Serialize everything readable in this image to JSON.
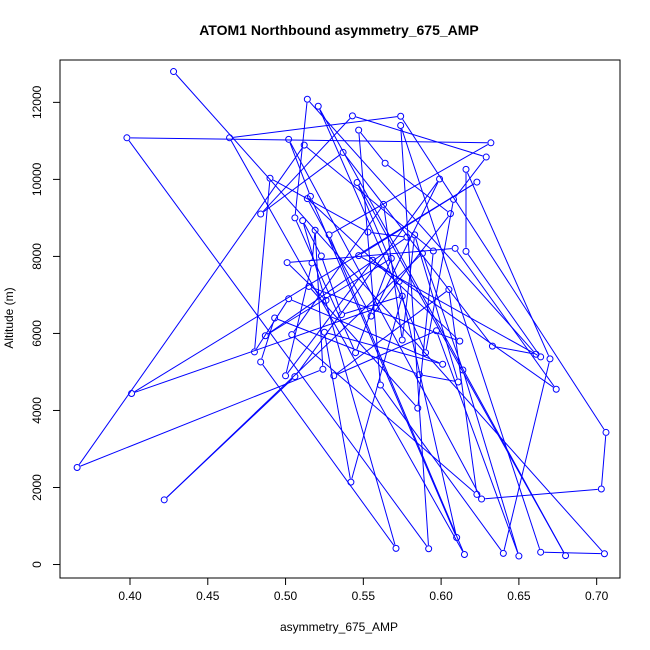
{
  "chart_data": {
    "type": "scatter",
    "title": "ATOM1 Northbound asymmetry_675_AMP",
    "xlabel": "asymmetry_675_AMP",
    "ylabel": "Altitude (m)",
    "xlim": [
      0.355,
      0.715
    ],
    "ylim": [
      -350,
      13100
    ],
    "x_ticks": [
      "0.40",
      "0.45",
      "0.50",
      "0.55",
      "0.60",
      "0.65",
      "0.70"
    ],
    "x_tick_values": [
      0.4,
      0.45,
      0.5,
      0.55,
      0.6,
      0.65,
      0.7
    ],
    "y_ticks": [
      "0",
      "2000",
      "4000",
      "6000",
      "8000",
      "10000",
      "12000"
    ],
    "y_tick_values": [
      0,
      2000,
      4000,
      6000,
      8000,
      10000,
      12000
    ],
    "grid": false,
    "style": {
      "line_color": "#0000ff",
      "marker": "open-circle"
    },
    "series": [
      {
        "points": [
          [
            0.428,
            12800
          ],
          [
            0.705,
            280
          ],
          [
            0.664,
            320
          ],
          [
            0.574,
            11400
          ],
          [
            0.592,
            410
          ],
          [
            0.398,
            11080
          ],
          [
            0.632,
            10950
          ],
          [
            0.528,
            8560
          ],
          [
            0.615,
            260
          ],
          [
            0.464,
            11080
          ],
          [
            0.574,
            11640
          ],
          [
            0.706,
            3430
          ],
          [
            0.703,
            1960
          ],
          [
            0.626,
            1700
          ],
          [
            0.502,
            11040
          ],
          [
            0.516,
            9560
          ],
          [
            0.61,
            700
          ],
          [
            0.573,
            7350
          ],
          [
            0.546,
            9920
          ],
          [
            0.68,
            230
          ],
          [
            0.521,
            11900
          ],
          [
            0.59,
            5500
          ],
          [
            0.608,
            9480
          ],
          [
            0.629,
            10580
          ],
          [
            0.543,
            11650
          ],
          [
            0.484,
            9100
          ],
          [
            0.537,
            10700
          ],
          [
            0.633,
            5670
          ],
          [
            0.661,
            5460
          ],
          [
            0.514,
            12080
          ],
          [
            0.506,
            9000
          ],
          [
            0.545,
            5500
          ],
          [
            0.568,
            7950
          ],
          [
            0.487,
            5940
          ],
          [
            0.578,
            8500
          ],
          [
            0.553,
            8630
          ],
          [
            0.49,
            10030
          ],
          [
            0.48,
            5520
          ],
          [
            0.502,
            6900
          ],
          [
            0.601,
            5200
          ],
          [
            0.525,
            6030
          ],
          [
            0.542,
            2140
          ],
          [
            0.575,
            6970
          ],
          [
            0.536,
            6490
          ],
          [
            0.523,
            8010
          ],
          [
            0.511,
            8930
          ],
          [
            0.571,
            420
          ],
          [
            0.484,
            5260
          ],
          [
            0.493,
            6400
          ],
          [
            0.586,
            4930
          ],
          [
            0.611,
            4740
          ],
          [
            0.583,
            8560
          ],
          [
            0.575,
            5830
          ],
          [
            0.563,
            9350
          ],
          [
            0.504,
            5970
          ],
          [
            0.623,
            1820
          ],
          [
            0.605,
            7140
          ],
          [
            0.531,
            4900
          ],
          [
            0.597,
            6070
          ],
          [
            0.65,
            220
          ],
          [
            0.614,
            5050
          ],
          [
            0.588,
            8080
          ],
          [
            0.422,
            1680
          ],
          [
            0.506,
            4880
          ],
          [
            0.599,
            10010
          ],
          [
            0.558,
            6650
          ],
          [
            0.401,
            4440
          ],
          [
            0.623,
            9930
          ],
          [
            0.547,
            8020
          ],
          [
            0.664,
            5390
          ],
          [
            0.616,
            8130
          ],
          [
            0.616,
            10260
          ],
          [
            0.67,
            5340
          ],
          [
            0.64,
            290
          ],
          [
            0.561,
            4660
          ],
          [
            0.547,
            11280
          ],
          [
            0.564,
            10420
          ],
          [
            0.606,
            9110
          ],
          [
            0.555,
            6450
          ],
          [
            0.514,
            9500
          ],
          [
            0.612,
            5800
          ],
          [
            0.515,
            7220
          ],
          [
            0.585,
            4060
          ],
          [
            0.595,
            8140
          ],
          [
            0.512,
            10890
          ],
          [
            0.366,
            2520
          ],
          [
            0.524,
            5070
          ],
          [
            0.519,
            8680
          ],
          [
            0.517,
            7830
          ],
          [
            0.5,
            4900
          ],
          [
            0.556,
            7900
          ],
          [
            0.674,
            4550
          ],
          [
            0.609,
            8210
          ],
          [
            0.501,
            7840
          ],
          [
            0.526,
            6860
          ]
        ]
      }
    ]
  }
}
